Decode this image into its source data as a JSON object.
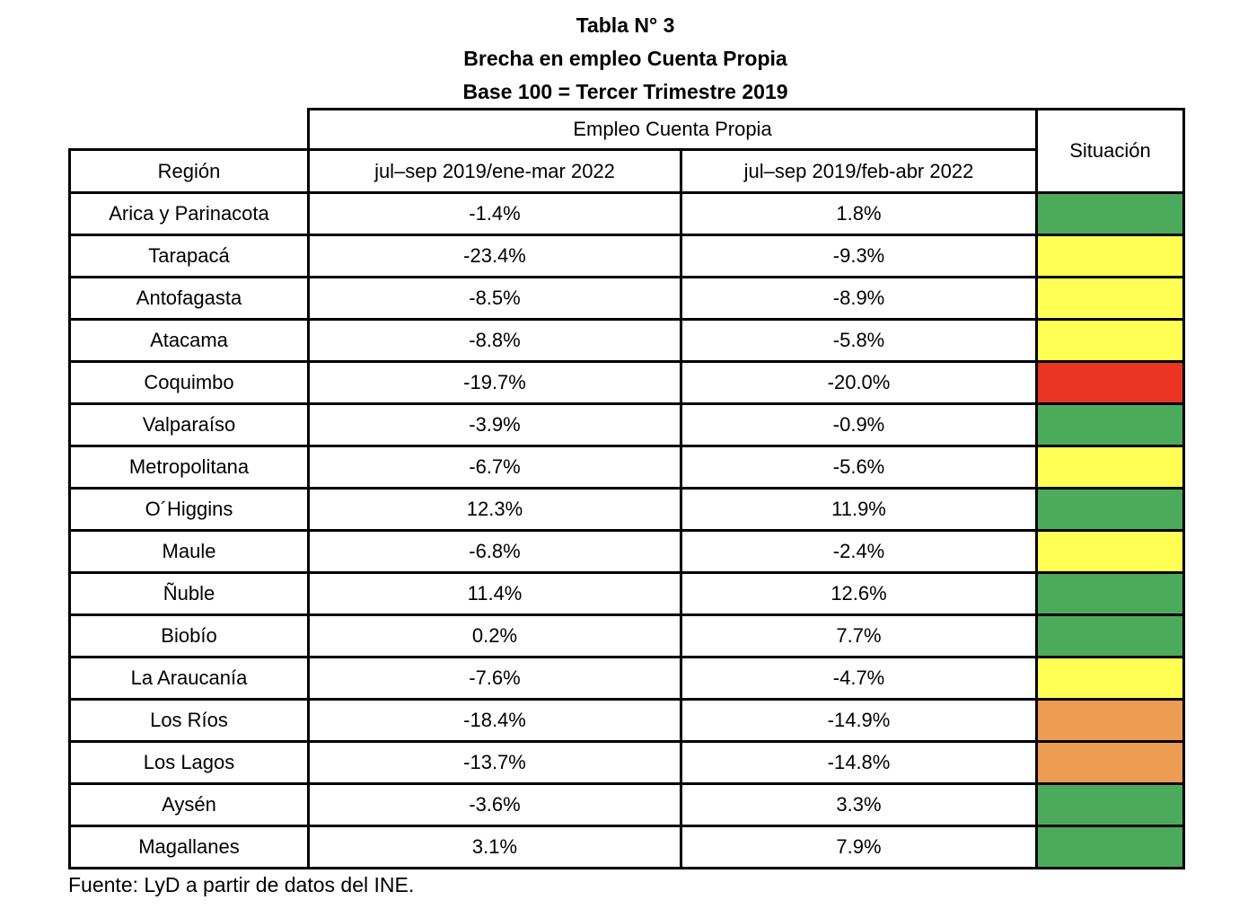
{
  "chart_data": {
    "type": "table",
    "title_lines": [
      "Tabla N° 3",
      "Brecha en empleo Cuenta Propia",
      "Base 100 = Tercer Trimestre 2019"
    ],
    "group_header": "Empleo Cuenta Propia",
    "columns": [
      "Región",
      "jul–sep 2019/ene-mar 2022",
      "jul–sep 2019/feb-abr 2022",
      "Situación"
    ],
    "rows": [
      {
        "region": "Arica y Parinacota",
        "ene_mar_2022": "-1.4%",
        "feb_abr_2022": "1.8%",
        "situacion": "green"
      },
      {
        "region": "Tarapacá",
        "ene_mar_2022": "-23.4%",
        "feb_abr_2022": "-9.3%",
        "situacion": "yellow"
      },
      {
        "region": "Antofagasta",
        "ene_mar_2022": "-8.5%",
        "feb_abr_2022": "-8.9%",
        "situacion": "yellow"
      },
      {
        "region": "Atacama",
        "ene_mar_2022": "-8.8%",
        "feb_abr_2022": "-5.8%",
        "situacion": "yellow"
      },
      {
        "region": "Coquimbo",
        "ene_mar_2022": "-19.7%",
        "feb_abr_2022": "-20.0%",
        "situacion": "red"
      },
      {
        "region": "Valparaíso",
        "ene_mar_2022": "-3.9%",
        "feb_abr_2022": "-0.9%",
        "situacion": "green"
      },
      {
        "region": "Metropolitana",
        "ene_mar_2022": "-6.7%",
        "feb_abr_2022": "-5.6%",
        "situacion": "yellow"
      },
      {
        "region": "O´Higgins",
        "ene_mar_2022": "12.3%",
        "feb_abr_2022": "11.9%",
        "situacion": "green"
      },
      {
        "region": "Maule",
        "ene_mar_2022": "-6.8%",
        "feb_abr_2022": "-2.4%",
        "situacion": "yellow"
      },
      {
        "region": "Ñuble",
        "ene_mar_2022": "11.4%",
        "feb_abr_2022": "12.6%",
        "situacion": "green"
      },
      {
        "region": "Biobío",
        "ene_mar_2022": "0.2%",
        "feb_abr_2022": "7.7%",
        "situacion": "green"
      },
      {
        "region": "La Araucanía",
        "ene_mar_2022": "-7.6%",
        "feb_abr_2022": "-4.7%",
        "situacion": "yellow"
      },
      {
        "region": "Los Ríos",
        "ene_mar_2022": "-18.4%",
        "feb_abr_2022": "-14.9%",
        "situacion": "orange"
      },
      {
        "region": "Los Lagos",
        "ene_mar_2022": "-13.7%",
        "feb_abr_2022": "-14.8%",
        "situacion": "orange"
      },
      {
        "region": "Aysén",
        "ene_mar_2022": "-3.6%",
        "feb_abr_2022": "3.3%",
        "situacion": "green"
      },
      {
        "region": "Magallanes",
        "ene_mar_2022": "3.1%",
        "feb_abr_2022": "7.9%",
        "situacion": "green"
      }
    ],
    "status_colors": {
      "green": "#4CAB5B",
      "yellow": "#FFFF54",
      "red": "#EA3523",
      "orange": "#EC9D53"
    },
    "source": "Fuente: LyD a partir de datos del INE."
  }
}
